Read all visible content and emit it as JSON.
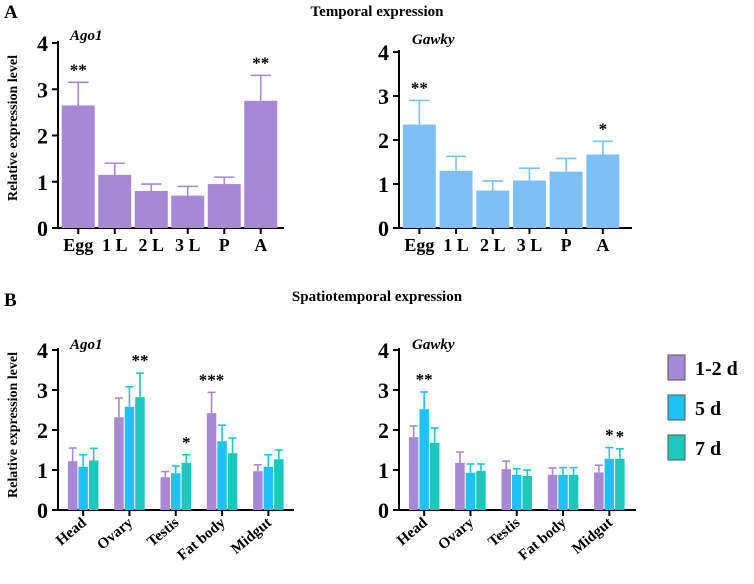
{
  "panel_a": {
    "letter": "A",
    "heading": "Temporal expression",
    "ylabel": "Relative expression level"
  },
  "panel_b": {
    "letter": "B",
    "heading": "Spatiotemporal expression",
    "ylabel": "Relative expression level"
  },
  "legend": {
    "items": [
      {
        "label": "1-2 d",
        "color": "#A887D6"
      },
      {
        "label": "5 d",
        "color": "#1FC3F3"
      },
      {
        "label": "7 d",
        "color": "#1EC7BD"
      }
    ]
  },
  "colors": {
    "ago1": "#A887D6",
    "gawky": "#7CC0F5",
    "d12": "#A887D6",
    "d5": "#1FC3F3",
    "d7": "#1EC7BD"
  },
  "chart_data": [
    {
      "id": "a-ago1",
      "type": "bar",
      "title": "Ago1",
      "ylabel": "Relative expression level",
      "ylim": [
        0,
        4
      ],
      "ticks": [
        0,
        1,
        2,
        3,
        4
      ],
      "categories": [
        "Egg",
        "1 L",
        "2 L",
        "3 L",
        "P",
        "A"
      ],
      "series": [
        {
          "name": "Ago1",
          "values": [
            2.65,
            1.15,
            0.8,
            0.7,
            0.95,
            2.75
          ],
          "errors": [
            0.5,
            0.25,
            0.15,
            0.2,
            0.15,
            0.55
          ],
          "sig": [
            "**",
            "",
            "",
            "",
            "",
            "**"
          ]
        }
      ]
    },
    {
      "id": "a-gawky",
      "type": "bar",
      "title": "Gawky",
      "ylabel": "",
      "ylim": [
        0,
        4
      ],
      "ticks": [
        0,
        1,
        2,
        3,
        4
      ],
      "categories": [
        "Egg",
        "1 L",
        "2 L",
        "3 L",
        "P",
        "A"
      ],
      "series": [
        {
          "name": "Gawky",
          "values": [
            2.35,
            1.3,
            0.85,
            1.08,
            1.28,
            1.67
          ],
          "errors": [
            0.55,
            0.33,
            0.22,
            0.28,
            0.3,
            0.3
          ],
          "sig": [
            "**",
            "",
            "",
            "",
            "",
            "*"
          ]
        }
      ]
    },
    {
      "id": "b-ago1",
      "type": "bar",
      "title": "Ago1",
      "ylabel": "Relative expression level",
      "ylim": [
        0,
        4
      ],
      "ticks": [
        0,
        1,
        2,
        3,
        4
      ],
      "categories": [
        "Head",
        "Ovary",
        "Testis",
        "Fat body",
        "Midgut"
      ],
      "series": [
        {
          "name": "1-2 d",
          "values": [
            1.22,
            2.32,
            0.82,
            2.42,
            0.97
          ],
          "errors": [
            0.33,
            0.48,
            0.14,
            0.52,
            0.16
          ],
          "sig": [
            "",
            "",
            "",
            "***",
            ""
          ]
        },
        {
          "name": "5 d",
          "values": [
            1.08,
            2.58,
            0.92,
            1.72,
            1.08
          ],
          "errors": [
            0.3,
            0.5,
            0.18,
            0.4,
            0.3
          ],
          "sig": [
            "",
            "",
            "",
            "",
            ""
          ]
        },
        {
          "name": "7 d",
          "values": [
            1.24,
            2.82,
            1.18,
            1.42,
            1.27
          ],
          "errors": [
            0.3,
            0.6,
            0.2,
            0.38,
            0.23
          ],
          "sig": [
            "",
            "**",
            "*",
            "",
            ""
          ]
        }
      ]
    },
    {
      "id": "b-gawky",
      "type": "bar",
      "title": "Gawky",
      "ylabel": "",
      "ylim": [
        0,
        4
      ],
      "ticks": [
        0,
        1,
        2,
        3,
        4
      ],
      "categories": [
        "Head",
        "Ovary",
        "Testis",
        "Fat body",
        "Midgut"
      ],
      "series": [
        {
          "name": "1-2 d",
          "values": [
            1.82,
            1.18,
            1.02,
            0.88,
            0.94
          ],
          "errors": [
            0.28,
            0.27,
            0.2,
            0.17,
            0.18
          ],
          "sig": [
            "",
            "",
            "",
            "",
            ""
          ]
        },
        {
          "name": "5 d",
          "values": [
            2.52,
            0.93,
            0.88,
            0.88,
            1.28
          ],
          "errors": [
            0.43,
            0.22,
            0.15,
            0.18,
            0.28
          ],
          "sig": [
            "**",
            "",
            "",
            "",
            "*"
          ]
        },
        {
          "name": "7 d",
          "values": [
            1.68,
            0.98,
            0.85,
            0.88,
            1.28
          ],
          "errors": [
            0.37,
            0.17,
            0.15,
            0.18,
            0.25
          ],
          "sig": [
            "",
            "",
            "",
            "",
            "*"
          ]
        }
      ]
    }
  ]
}
